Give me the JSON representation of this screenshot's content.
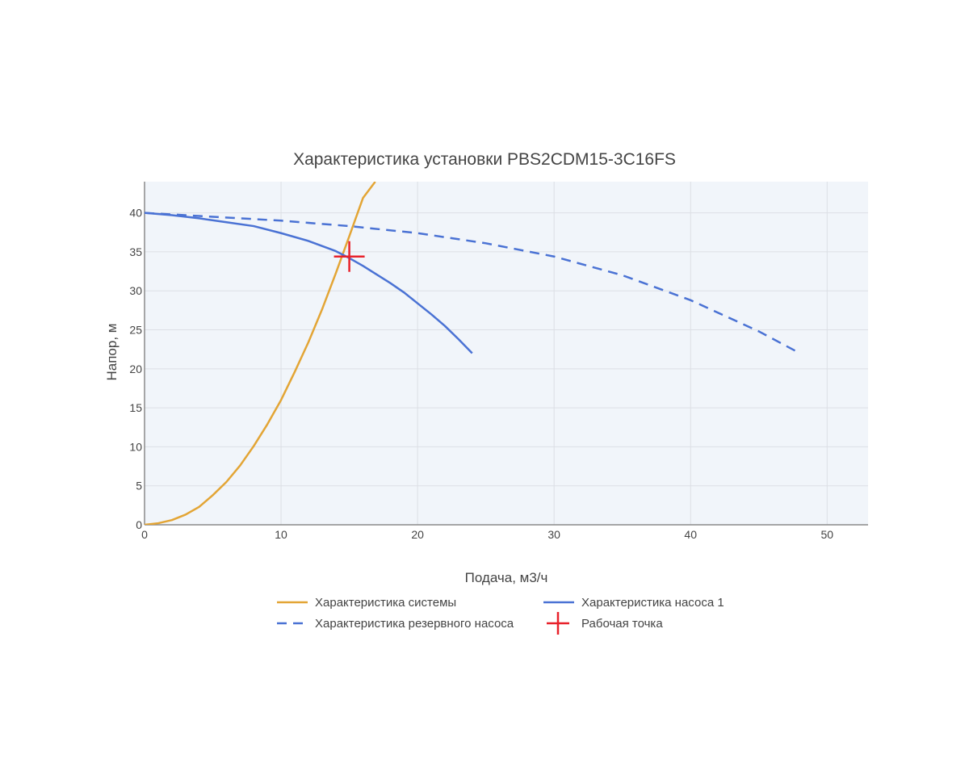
{
  "chart_data": {
    "type": "line",
    "title": "Характеристика установки PBS2CDM15-3C16FS",
    "xlabel": "Подача, м3/ч",
    "ylabel": "Напор, м",
    "xlim": [
      0,
      53
    ],
    "ylim": [
      0,
      44
    ],
    "xticks": [
      0,
      10,
      20,
      30,
      40,
      50
    ],
    "yticks": [
      0,
      5,
      10,
      15,
      20,
      25,
      30,
      35,
      40
    ],
    "grid": true,
    "legend_position": "bottom",
    "series": [
      {
        "name": "Характеристика системы",
        "color": "#E3A535",
        "dash": "solid",
        "x": [
          0,
          1,
          2,
          3,
          4,
          5,
          6,
          7,
          8,
          9,
          10,
          11,
          12,
          13,
          14,
          15,
          16,
          16.9
        ],
        "y": [
          0,
          0.2,
          0.6,
          1.3,
          2.3,
          3.8,
          5.5,
          7.6,
          10.1,
          12.9,
          16.0,
          19.6,
          23.4,
          27.6,
          32.2,
          37.0,
          41.9,
          44.0
        ]
      },
      {
        "name": "Характеристика насоса 1",
        "color": "#4A72D4",
        "dash": "solid",
        "x": [
          0,
          2,
          4,
          6,
          8,
          10,
          12,
          14,
          15,
          16,
          17,
          18,
          19,
          20,
          21,
          22,
          23,
          24
        ],
        "y": [
          40.0,
          39.7,
          39.3,
          38.8,
          38.3,
          37.4,
          36.4,
          35.1,
          34.2,
          33.2,
          32.1,
          31.0,
          29.8,
          28.4,
          27.0,
          25.5,
          23.8,
          22.0
        ]
      },
      {
        "name": "Характеристика резервного насоса",
        "color": "#4A72D4",
        "dash": "dash",
        "x": [
          0,
          5,
          10,
          15,
          20,
          25,
          30,
          35,
          40,
          45,
          48
        ],
        "y": [
          40.0,
          39.5,
          39.0,
          38.3,
          37.4,
          36.1,
          34.4,
          32.0,
          28.8,
          24.8,
          22.0
        ]
      },
      {
        "name": "Рабочая точка",
        "color": "#E8212A",
        "marker": "cross",
        "x": [
          15
        ],
        "y": [
          34.4
        ]
      }
    ]
  }
}
